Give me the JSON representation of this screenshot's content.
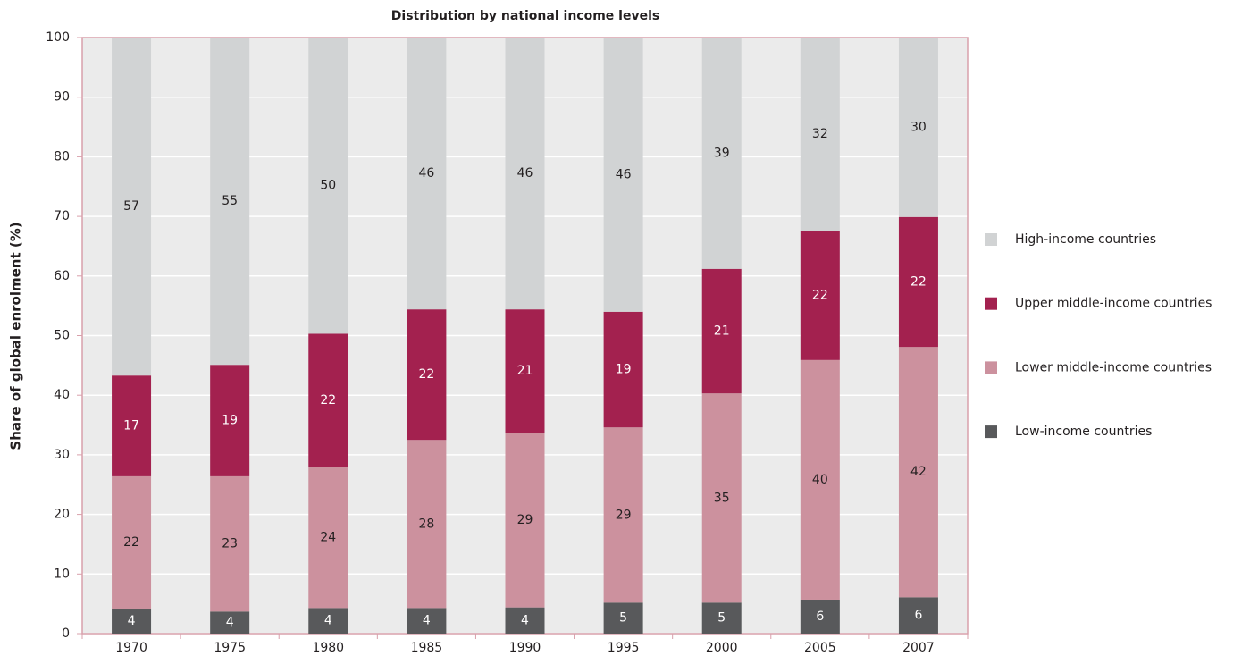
{
  "chart_data": {
    "type": "stacked_bar",
    "title": "Distribution by national income levels",
    "y_label": "Share of global enrolment (%)",
    "categories": [
      "1970",
      "1975",
      "1980",
      "1985",
      "1990",
      "1995",
      "2000",
      "2005",
      "2007"
    ],
    "series": [
      {
        "name": "Low-income countries",
        "color": "#58595b",
        "values": [
          4.2,
          3.7,
          4.3,
          4.3,
          4.4,
          5.2,
          5.2,
          5.7,
          6.1
        ],
        "value_labels": [
          "4",
          "4",
          "4",
          "4",
          "4",
          "5",
          "5",
          "6",
          "6"
        ]
      },
      {
        "name": "Lower middle-income countries",
        "color": "#cc919e",
        "values": [
          22.2,
          22.7,
          23.6,
          28.2,
          29.3,
          29.4,
          35.1,
          40.2,
          42.0
        ],
        "value_labels": [
          "22",
          "23",
          "24",
          "28",
          "29",
          "29",
          "35",
          "40",
          "42"
        ]
      },
      {
        "name": "Upper middle-income countries",
        "color": "#a3214f",
        "values": [
          16.9,
          18.7,
          22.4,
          21.9,
          20.7,
          19.4,
          20.9,
          21.7,
          21.8
        ],
        "value_labels": [
          "17",
          "19",
          "22",
          "22",
          "21",
          "19",
          "21",
          "22",
          "22"
        ]
      },
      {
        "name": "High-income countries",
        "color": "#d1d3d4",
        "values": [
          56.7,
          54.9,
          49.7,
          45.6,
          45.6,
          46.0,
          38.8,
          32.4,
          30.1
        ],
        "value_labels": [
          "57",
          "55",
          "50",
          "46",
          "46",
          "46",
          "39",
          "32",
          "30"
        ]
      }
    ],
    "ylim": [
      0,
      100
    ],
    "yticks": [
      0,
      10,
      20,
      30,
      40,
      50,
      60,
      70,
      80,
      90,
      100
    ],
    "grid": true,
    "legend": "right"
  }
}
